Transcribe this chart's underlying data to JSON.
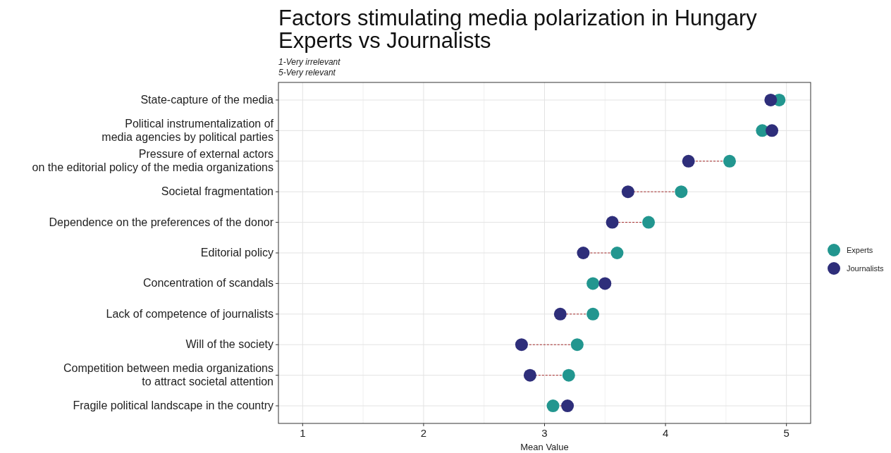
{
  "chart_data": {
    "type": "scatter",
    "orientation": "horizontal",
    "title": "Factors stimulating media polarization in Hungary\nExperts vs Journalists",
    "subtitle": "1-Very irrelevant\n5-Very relevant",
    "xlabel": "Mean Value",
    "categories": [
      "State-capture of the media",
      "Political instrumentalization of\nmedia agencies by political parties",
      "Pressure of external actors\non the editorial policy of the media organizations",
      "Societal fragmentation",
      "Dependence on the preferences of the donor",
      "Editorial policy",
      "Concentration of scandals",
      "Lack of competence of journalists",
      "Will of the society",
      "Competition between media organizations\nto attract societal attention",
      "Fragile political landscape in the country"
    ],
    "series": [
      {
        "name": "Experts",
        "color": "#22968f",
        "values": [
          4.94,
          4.8,
          4.53,
          4.13,
          3.86,
          3.6,
          3.4,
          3.4,
          3.27,
          3.2,
          3.07
        ]
      },
      {
        "name": "Journalists",
        "color": "#2e2e7a",
        "values": [
          4.87,
          4.88,
          4.19,
          3.69,
          3.56,
          3.32,
          3.5,
          3.13,
          2.81,
          2.88,
          3.19
        ]
      }
    ],
    "xlim": [
      0.8,
      5.2
    ],
    "xticks": [
      1,
      2,
      3,
      4,
      5
    ],
    "grid": true,
    "legend": "right",
    "marker": "circle"
  }
}
